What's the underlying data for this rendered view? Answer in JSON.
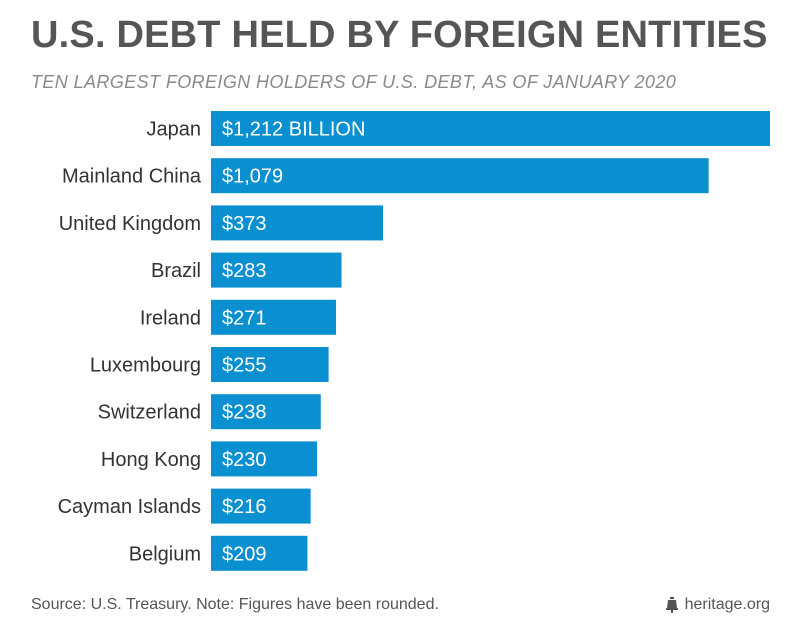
{
  "title": "U.S. DEBT HELD BY FOREIGN ENTITIES",
  "subtitle": "TEN LARGEST FOREIGN HOLDERS OF U.S. DEBT, AS OF JANUARY 2020",
  "footer": {
    "source": "Source: U.S. Treasury. Note: Figures have been rounded.",
    "brand": "heritage.org",
    "brand_icon": "liberty-bell-icon"
  },
  "colors": {
    "bar": "#0a8fd0",
    "bar_label": "#ffffff",
    "category_label": "#333333",
    "title": "#555555",
    "subtitle": "#8a8a8a"
  },
  "chart_data": {
    "type": "bar",
    "orientation": "horizontal",
    "categories": [
      "Japan",
      "Mainland China",
      "United Kingdom",
      "Brazil",
      "Ireland",
      "Luxembourg",
      "Switzerland",
      "Hong Kong",
      "Cayman Islands",
      "Belgium"
    ],
    "values": [
      1212,
      1079,
      373,
      283,
      271,
      255,
      238,
      230,
      216,
      209
    ],
    "value_labels": [
      "$1,212 BILLION",
      "$1,079",
      "$373",
      "$283",
      "$271",
      "$255",
      "$238",
      "$230",
      "$216",
      "$209"
    ],
    "title": "U.S. DEBT HELD BY FOREIGN ENTITIES",
    "xlabel": "",
    "ylabel": "",
    "grid": false,
    "legend": "none"
  }
}
